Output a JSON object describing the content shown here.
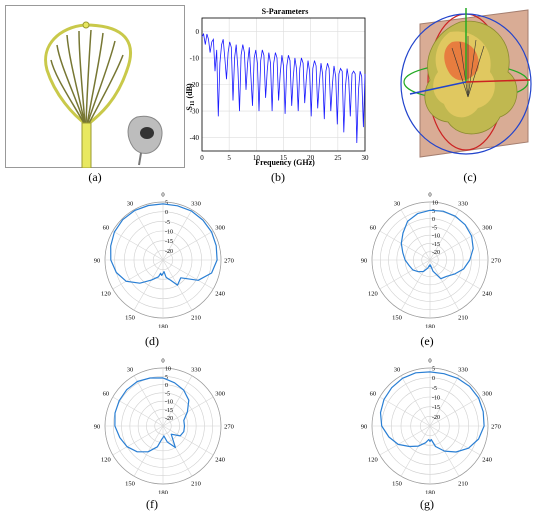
{
  "captions": {
    "a": "(a)",
    "b": "(b)",
    "c": "(c)",
    "d": "(d)",
    "e": "(e)",
    "f": "(f)",
    "g": "(g)"
  },
  "chart_data": [
    {
      "id": "b",
      "type": "line",
      "title": "S-Parameters",
      "xlabel": "Frequency (GHz)",
      "ylabel": "S",
      "ylabel_sub": "11",
      "ylabel_unit": " (dB)",
      "xlim": [
        0,
        30
      ],
      "ylim": [
        -45,
        5
      ],
      "xticks": [
        "0",
        "5",
        "10",
        "15",
        "20",
        "25",
        "30"
      ],
      "yticks": [
        "0",
        "-10",
        "-20",
        "-30",
        "-40"
      ],
      "grid": true,
      "color": "#1a1aff",
      "x": [
        0,
        0.3,
        0.6,
        0.9,
        1.2,
        1.5,
        1.8,
        2.1,
        2.4,
        2.7,
        3.0,
        3.3,
        3.6,
        3.9,
        4.2,
        4.5,
        4.8,
        5.1,
        5.4,
        5.7,
        6.0,
        6.3,
        6.6,
        6.9,
        7.2,
        7.5,
        7.8,
        8.1,
        8.4,
        8.7,
        9.0,
        9.3,
        9.6,
        9.9,
        10.2,
        10.5,
        10.8,
        11.1,
        11.4,
        11.7,
        12.0,
        12.3,
        12.6,
        12.9,
        13.2,
        13.5,
        13.8,
        14.1,
        14.4,
        14.7,
        15.0,
        15.3,
        15.6,
        15.9,
        16.2,
        16.5,
        16.8,
        17.1,
        17.4,
        17.7,
        18.0,
        18.3,
        18.6,
        18.9,
        19.2,
        19.5,
        19.8,
        20.1,
        20.4,
        20.7,
        21.0,
        21.3,
        21.6,
        21.9,
        22.2,
        22.5,
        22.8,
        23.1,
        23.4,
        23.7,
        24.0,
        24.3,
        24.6,
        24.9,
        25.2,
        25.5,
        25.8,
        26.1,
        26.4,
        26.7,
        27.0,
        27.3,
        27.6,
        27.9,
        28.2,
        28.5,
        28.8,
        29.1,
        29.4,
        29.7,
        30.0
      ],
      "y": [
        -2,
        -1,
        -5,
        -1,
        -3,
        -8,
        -4,
        -3,
        -15,
        -7,
        -32,
        -12,
        -5,
        -3,
        -10,
        -18,
        -8,
        -4,
        -6,
        -26,
        -10,
        -5,
        -14,
        -30,
        -9,
        -5,
        -8,
        -22,
        -12,
        -6,
        -17,
        -28,
        -10,
        -7,
        -12,
        -30,
        -11,
        -7,
        -9,
        -25,
        -15,
        -8,
        -12,
        -30,
        -12,
        -8,
        -10,
        -26,
        -16,
        -9,
        -13,
        -31,
        -13,
        -9,
        -11,
        -28,
        -17,
        -10,
        -14,
        -30,
        -14,
        -10,
        -12,
        -27,
        -18,
        -11,
        -15,
        -32,
        -14,
        -11,
        -13,
        -29,
        -19,
        -12,
        -16,
        -33,
        -15,
        -12,
        -14,
        -30,
        -20,
        -13,
        -17,
        -35,
        -16,
        -14,
        -15,
        -38,
        -21,
        -14,
        -18,
        -32,
        -16,
        -15,
        -16,
        -42,
        -22,
        -15,
        -17,
        -36,
        -16
      ]
    },
    {
      "id": "d",
      "type": "polar",
      "rlim": [
        -25,
        5
      ],
      "rticks": [
        "5",
        "0",
        "-5",
        "-10",
        "-15",
        "-20"
      ],
      "angle_labels": [
        "0",
        "30",
        "60",
        "90",
        "120",
        "150",
        "180",
        "210",
        "240",
        "270",
        "300",
        "330"
      ],
      "theta": [
        0,
        15,
        30,
        45,
        60,
        75,
        90,
        105,
        120,
        135,
        150,
        165,
        170,
        175,
        180,
        185,
        190,
        195,
        200,
        210,
        225,
        240,
        255,
        270,
        285,
        300,
        315,
        330,
        345,
        360
      ],
      "r": [
        4,
        4.2,
        4.5,
        4.5,
        4,
        3,
        2,
        0,
        -3,
        -8,
        -13,
        -16,
        -18,
        -17,
        -18,
        -19,
        -16,
        -15,
        -14,
        -10,
        -12,
        -4,
        1,
        3,
        3.5,
        4,
        4.2,
        4.3,
        4,
        4
      ],
      "color": "#2a7fd4"
    },
    {
      "id": "e",
      "type": "polar",
      "rlim": [
        -25,
        10
      ],
      "rticks": [
        "10",
        "5",
        "0",
        "-5",
        "-10",
        "-15",
        "-20"
      ],
      "angle_labels": [
        "0",
        "30",
        "60",
        "90",
        "120",
        "150",
        "180",
        "210",
        "240",
        "270",
        "300",
        "330"
      ],
      "theta": [
        0,
        15,
        30,
        45,
        60,
        75,
        90,
        105,
        120,
        135,
        150,
        165,
        175,
        180,
        185,
        195,
        210,
        225,
        240,
        255,
        270,
        285,
        300,
        315,
        330,
        345,
        360
      ],
      "r": [
        5,
        4,
        2,
        -2,
        -5,
        -8,
        -10,
        -12,
        -13,
        -15,
        -17,
        -20,
        -22,
        -21,
        -22,
        -18,
        -12,
        -11,
        -8,
        -4,
        -1,
        2,
        4,
        5,
        5.5,
        5.5,
        5
      ],
      "color": "#2a7fd4"
    },
    {
      "id": "f",
      "type": "polar",
      "rlim": [
        -25,
        10
      ],
      "rticks": [
        "10",
        "5",
        "0",
        "-5",
        "-10",
        "-15",
        "-20"
      ],
      "angle_labels": [
        "0",
        "30",
        "60",
        "90",
        "120",
        "150",
        "180",
        "210",
        "240",
        "270",
        "300",
        "330"
      ],
      "theta": [
        0,
        15,
        30,
        45,
        60,
        75,
        90,
        105,
        120,
        135,
        150,
        165,
        175,
        180,
        185,
        195,
        210,
        225,
        240,
        255,
        270,
        285,
        300,
        315,
        330,
        345,
        360
      ],
      "r": [
        4,
        5,
        6,
        6,
        5.5,
        5,
        4,
        2,
        0,
        -3,
        -7,
        -12,
        -17,
        -18,
        -19,
        -15,
        -10,
        -18,
        -13,
        -12,
        -12,
        -12,
        -8,
        -3,
        0,
        2,
        4
      ],
      "color": "#2a7fd4"
    },
    {
      "id": "g",
      "type": "polar",
      "rlim": [
        -25,
        5
      ],
      "rticks": [
        "5",
        "0",
        "-5",
        "-10",
        "-15",
        "-20"
      ],
      "angle_labels": [
        "0",
        "30",
        "60",
        "90",
        "120",
        "150",
        "180",
        "210",
        "240",
        "270",
        "300",
        "330"
      ],
      "theta": [
        0,
        15,
        30,
        45,
        60,
        75,
        90,
        105,
        120,
        135,
        150,
        165,
        175,
        180,
        185,
        195,
        210,
        225,
        240,
        255,
        270,
        285,
        300,
        315,
        330,
        345,
        360
      ],
      "r": [
        3,
        3.5,
        3.5,
        3,
        2.5,
        1.5,
        0,
        -3,
        -6,
        -10,
        -13,
        -16,
        -18,
        -17,
        -18,
        -14,
        -10,
        -6,
        -2,
        1,
        3,
        3.5,
        4,
        4,
        3.5,
        3,
        3
      ],
      "color": "#2a7fd4"
    }
  ]
}
